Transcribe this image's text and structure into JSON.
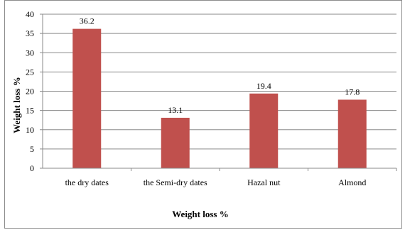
{
  "chart_data": {
    "type": "bar",
    "categories": [
      "the dry dates",
      "the Semi-dry dates",
      "Hazal nut",
      "Almond"
    ],
    "values": [
      36.2,
      13.1,
      19.4,
      17.8
    ],
    "data_labels": [
      "36.2",
      "13.1",
      "19.4",
      "17.8"
    ],
    "title": "",
    "xlabel": "Weight loss %",
    "ylabel": "Weight loss %",
    "ylim": [
      0,
      40
    ],
    "yticks": [
      0,
      5,
      10,
      15,
      20,
      25,
      30,
      35,
      40
    ],
    "grid": true,
    "legend": "none",
    "bar_color": "#c0504d"
  }
}
